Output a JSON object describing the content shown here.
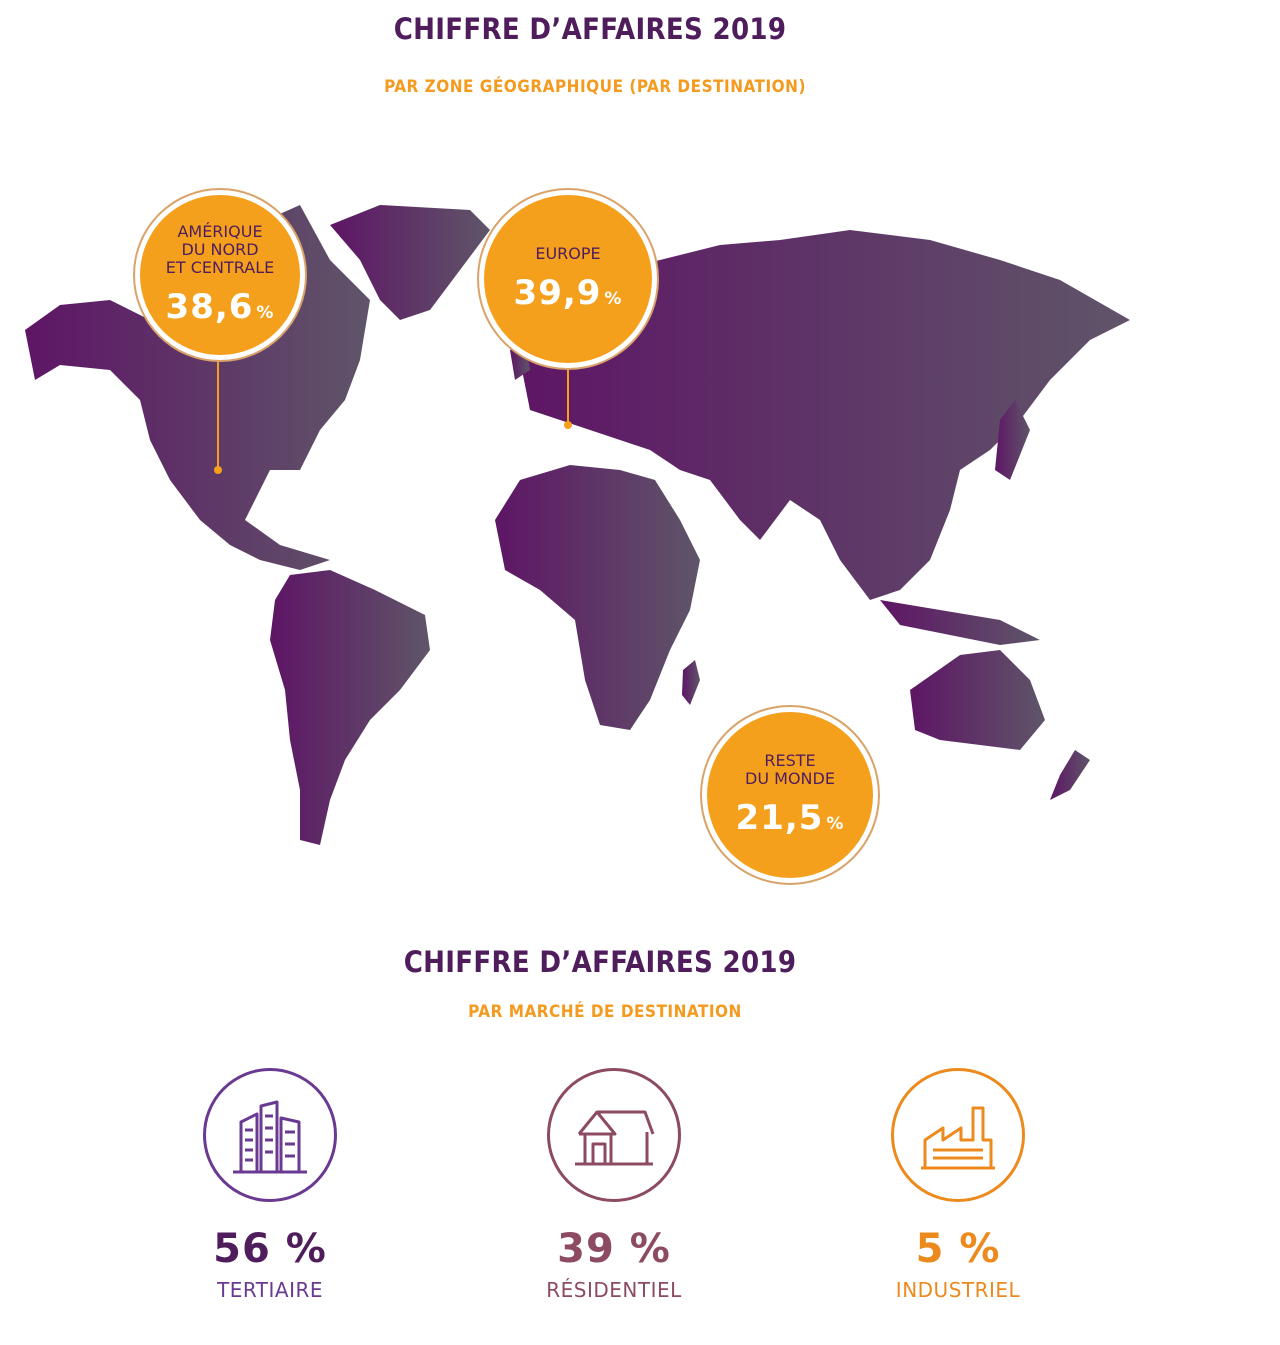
{
  "section_geo": {
    "title": "CHIFFRE D’AFFAIRES 2019",
    "subtitle": "PAR ZONE GÉOGRAPHIQUE (PAR DESTINATION)",
    "regions": [
      {
        "label_lines": [
          "AMÉRIQUE",
          "DU NORD",
          "ET CENTRALE"
        ],
        "value": "38,6",
        "unit": "%"
      },
      {
        "label_lines": [
          "EUROPE"
        ],
        "value": "39,9",
        "unit": "%"
      },
      {
        "label_lines": [
          "RESTE",
          "DU MONDE"
        ],
        "value": "21,5",
        "unit": "%"
      }
    ]
  },
  "section_market": {
    "title": "CHIFFRE D’AFFAIRES 2019",
    "subtitle": "PAR MARCHÉ DE DESTINATION",
    "markets": [
      {
        "value": "56 %",
        "name": "TERTIAIRE",
        "icon": "office-buildings-icon",
        "color": "#6a3a92"
      },
      {
        "value": "39 %",
        "name": "RÉSIDENTIEL",
        "icon": "house-icon",
        "color": "#8c4a63"
      },
      {
        "value": "5 %",
        "name": "INDUSTRIEL",
        "icon": "factory-icon",
        "color": "#ec8a1e"
      }
    ]
  },
  "colors": {
    "map_start": "#5e1565",
    "map_end": "#5f5569",
    "bubble": "#f5a01c",
    "title": "#4f1d5c",
    "subtitle": "#f39a1f"
  }
}
